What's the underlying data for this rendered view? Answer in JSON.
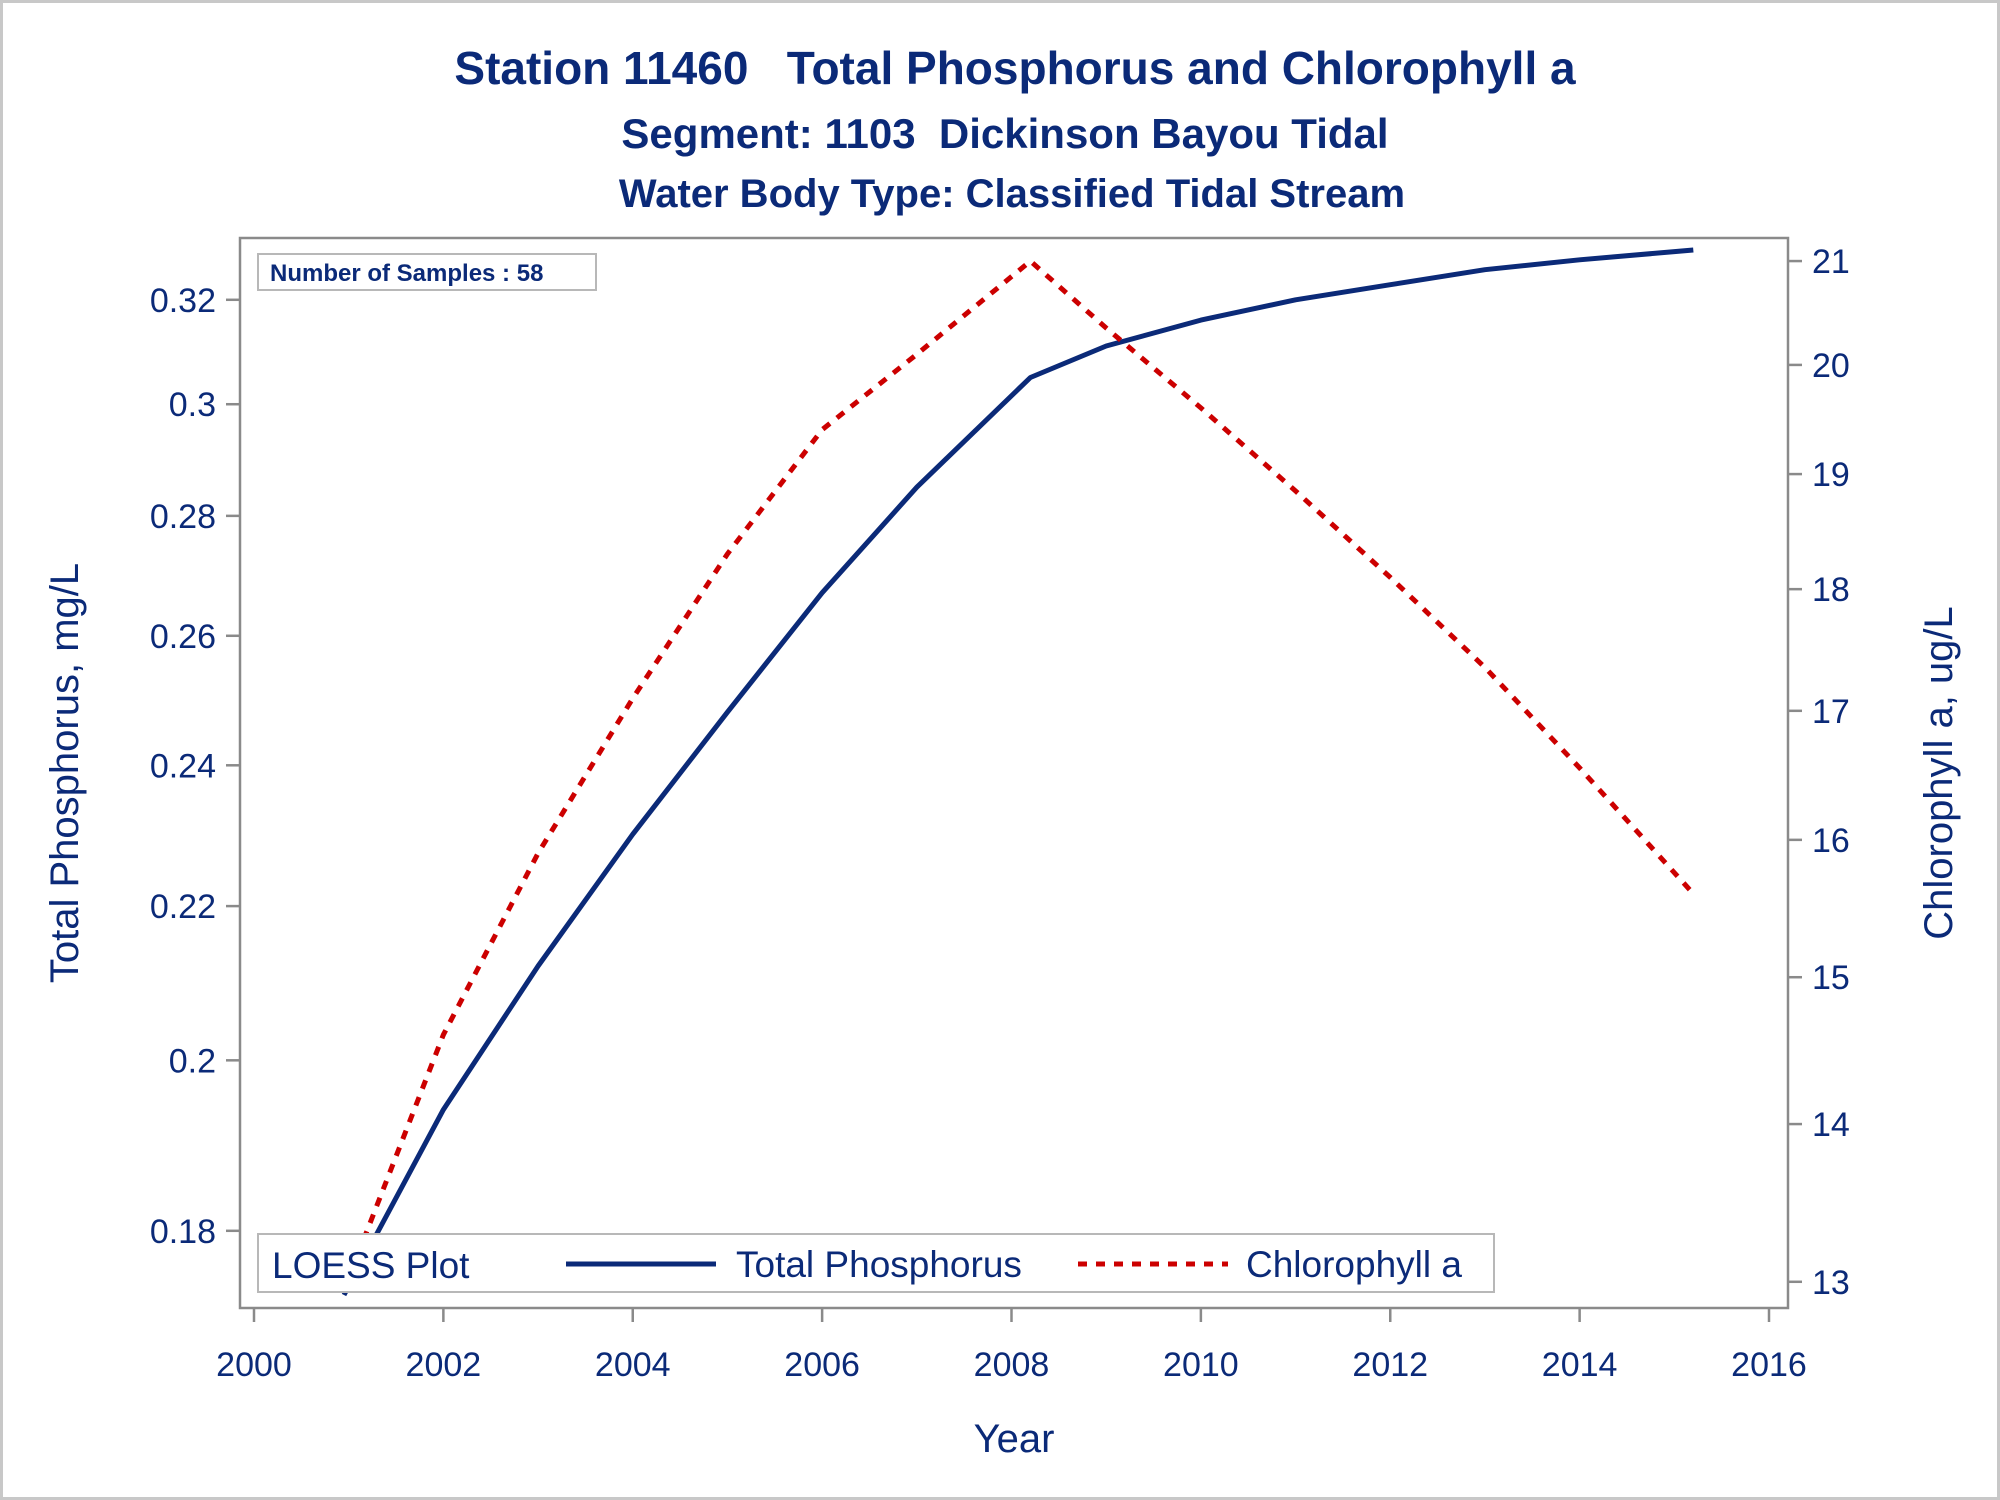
{
  "colors": {
    "text": "#0b2a78",
    "phosphorus": "#0b2a78",
    "chlorophyll": "#cc0000",
    "axis": "#8a8a8a"
  },
  "chart_data": {
    "type": "line",
    "title": "Station 11460   Total Phosphorus and Chlorophyll a",
    "subtitle": "Segment: 1103  Dickinson Bayou Tidal",
    "subtitle2": "Water Body Type: Classified Tidal Stream",
    "xlabel": "Year",
    "ylabel_left": "Total Phosphorus, mg/L",
    "ylabel_right": "Chlorophyll a, ug/L",
    "xlim": [
      2000,
      2016
    ],
    "y_left_lim": [
      0.173,
      0.33
    ],
    "y_right_lim": [
      12.95,
      21.05
    ],
    "y_left_scale": "log",
    "y_right_scale": "log",
    "x_ticks": [
      "2000",
      "2002",
      "2004",
      "2006",
      "2008",
      "2010",
      "2012",
      "2014",
      "2016"
    ],
    "y_left_ticks": [
      "0.18",
      "0.2",
      "0.22",
      "0.24",
      "0.26",
      "0.28",
      "0.3",
      "0.32"
    ],
    "y_right_ticks": [
      "13",
      "14",
      "15",
      "16",
      "17",
      "18",
      "19",
      "20",
      "21"
    ],
    "inset_label": "Number of Samples : 58",
    "legend": {
      "title": "LOESS Plot",
      "placement": "bottom-left",
      "entries": [
        "Total Phosphorus",
        "Chlorophyll a"
      ]
    },
    "series": [
      {
        "name": "Total Phosphorus",
        "axis": "left",
        "style": "solid",
        "x": [
          2000.95,
          2002,
          2003,
          2004,
          2005,
          2006,
          2007,
          2008.2,
          2009,
          2010,
          2011,
          2012,
          2013,
          2014,
          2015.2
        ],
        "y": [
          0.173,
          0.194,
          0.212,
          0.23,
          0.248,
          0.267,
          0.285,
          0.305,
          0.311,
          0.316,
          0.32,
          0.323,
          0.326,
          0.328,
          0.33
        ]
      },
      {
        "name": "Chlorophyll a",
        "axis": "right",
        "style": "dashed",
        "x": [
          2000.95,
          2002,
          2003,
          2004,
          2005,
          2006,
          2007,
          2008.2,
          2009,
          2010,
          2011,
          2012,
          2013,
          2014,
          2015.2
        ],
        "y": [
          12.95,
          14.6,
          15.9,
          17.1,
          18.3,
          19.4,
          20.1,
          21.0,
          20.35,
          19.6,
          18.85,
          18.1,
          17.35,
          16.55,
          15.6
        ]
      }
    ]
  }
}
